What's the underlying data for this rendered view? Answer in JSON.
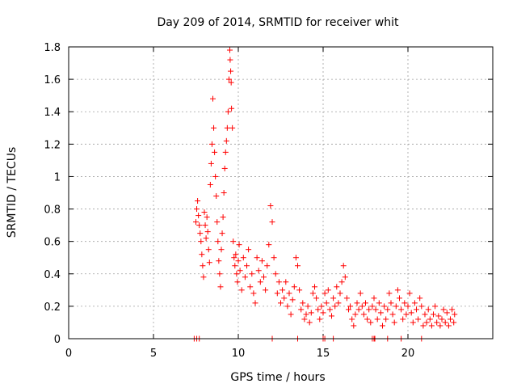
{
  "chart_data": {
    "type": "scatter",
    "title": "Day 209 of 2014, SRMTID for receiver whit",
    "xlabel": "GPS time / hours",
    "ylabel": "SRMTID / TECUs",
    "xlim": [
      0,
      25
    ],
    "ylim": [
      0,
      1.8
    ],
    "xticks": [
      0,
      5,
      10,
      15,
      20
    ],
    "xtick_labels": [
      "0",
      "5",
      "10",
      "15",
      "20"
    ],
    "yticks": [
      0,
      0.2,
      0.4,
      0.6,
      0.8,
      1,
      1.2,
      1.4,
      1.6,
      1.8
    ],
    "ytick_labels": [
      "0",
      "0.2",
      "0.4",
      "0.6",
      "0.8",
      "1",
      "1.2",
      "1.4",
      "1.6",
      "1.8"
    ],
    "grid": true,
    "marker": "+",
    "marker_color": "#ff0000",
    "series": [
      {
        "name": "SRMTID",
        "points": [
          [
            7.5,
            0.72
          ],
          [
            7.55,
            0.8
          ],
          [
            7.6,
            0.85
          ],
          [
            7.65,
            0.76
          ],
          [
            7.7,
            0.7
          ],
          [
            7.75,
            0.65
          ],
          [
            7.8,
            0.6
          ],
          [
            7.85,
            0.52
          ],
          [
            7.9,
            0.45
          ],
          [
            7.95,
            0.38
          ],
          [
            8.0,
            0.78
          ],
          [
            8.05,
            0.7
          ],
          [
            8.1,
            0.62
          ],
          [
            8.15,
            0.75
          ],
          [
            8.2,
            0.66
          ],
          [
            8.25,
            0.55
          ],
          [
            8.3,
            0.47
          ],
          [
            8.35,
            0.95
          ],
          [
            8.4,
            1.08
          ],
          [
            8.45,
            1.2
          ],
          [
            8.5,
            1.48
          ],
          [
            8.55,
            1.3
          ],
          [
            8.6,
            1.15
          ],
          [
            8.65,
            1.0
          ],
          [
            8.7,
            0.88
          ],
          [
            8.75,
            0.72
          ],
          [
            8.8,
            0.6
          ],
          [
            8.85,
            0.48
          ],
          [
            8.9,
            0.4
          ],
          [
            8.95,
            0.32
          ],
          [
            9.0,
            0.55
          ],
          [
            9.05,
            0.65
          ],
          [
            9.1,
            0.75
          ],
          [
            9.15,
            0.9
          ],
          [
            9.2,
            1.05
          ],
          [
            9.25,
            1.15
          ],
          [
            9.3,
            1.22
          ],
          [
            9.35,
            1.3
          ],
          [
            9.4,
            1.4
          ],
          [
            9.45,
            1.6
          ],
          [
            9.5,
            1.78
          ],
          [
            9.52,
            1.72
          ],
          [
            9.55,
            1.65
          ],
          [
            9.58,
            1.58
          ],
          [
            9.6,
            1.42
          ],
          [
            9.65,
            1.3
          ],
          [
            9.7,
            0.6
          ],
          [
            9.75,
            0.5
          ],
          [
            9.8,
            0.45
          ],
          [
            9.85,
            0.52
          ],
          [
            9.9,
            0.4
          ],
          [
            9.95,
            0.35
          ],
          [
            10.0,
            0.48
          ],
          [
            10.05,
            0.58
          ],
          [
            10.1,
            0.42
          ],
          [
            10.2,
            0.3
          ],
          [
            10.3,
            0.5
          ],
          [
            10.4,
            0.38
          ],
          [
            10.5,
            0.45
          ],
          [
            10.6,
            0.55
          ],
          [
            10.7,
            0.32
          ],
          [
            10.8,
            0.4
          ],
          [
            10.9,
            0.28
          ],
          [
            11.0,
            0.22
          ],
          [
            11.1,
            0.5
          ],
          [
            11.2,
            0.42
          ],
          [
            11.3,
            0.35
          ],
          [
            11.4,
            0.48
          ],
          [
            11.5,
            0.38
          ],
          [
            11.6,
            0.3
          ],
          [
            11.7,
            0.45
          ],
          [
            11.8,
            0.58
          ],
          [
            11.9,
            0.82
          ],
          [
            12.0,
            0.72
          ],
          [
            12.1,
            0.5
          ],
          [
            12.2,
            0.4
          ],
          [
            12.3,
            0.28
          ],
          [
            12.4,
            0.35
          ],
          [
            12.5,
            0.22
          ],
          [
            12.6,
            0.3
          ],
          [
            12.7,
            0.25
          ],
          [
            12.8,
            0.35
          ],
          [
            12.9,
            0.2
          ],
          [
            13.0,
            0.28
          ],
          [
            13.1,
            0.15
          ],
          [
            13.2,
            0.24
          ],
          [
            13.3,
            0.32
          ],
          [
            13.4,
            0.5
          ],
          [
            13.5,
            0.45
          ],
          [
            13.6,
            0.3
          ],
          [
            13.7,
            0.18
          ],
          [
            13.8,
            0.22
          ],
          [
            13.9,
            0.12
          ],
          [
            14.0,
            0.15
          ],
          [
            14.1,
            0.2
          ],
          [
            14.2,
            0.1
          ],
          [
            14.3,
            0.16
          ],
          [
            14.4,
            0.28
          ],
          [
            14.5,
            0.32
          ],
          [
            14.6,
            0.25
          ],
          [
            14.7,
            0.18
          ],
          [
            14.8,
            0.12
          ],
          [
            14.9,
            0.2
          ],
          [
            15.0,
            0.16
          ],
          [
            15.1,
            0.28
          ],
          [
            15.2,
            0.22
          ],
          [
            15.3,
            0.3
          ],
          [
            15.4,
            0.18
          ],
          [
            15.5,
            0.14
          ],
          [
            15.6,
            0.25
          ],
          [
            15.7,
            0.2
          ],
          [
            15.8,
            0.32
          ],
          [
            15.9,
            0.22
          ],
          [
            16.0,
            0.28
          ],
          [
            16.1,
            0.35
          ],
          [
            16.2,
            0.45
          ],
          [
            16.3,
            0.38
          ],
          [
            16.4,
            0.25
          ],
          [
            16.5,
            0.18
          ],
          [
            16.6,
            0.2
          ],
          [
            16.7,
            0.12
          ],
          [
            16.8,
            0.08
          ],
          [
            16.9,
            0.15
          ],
          [
            17.0,
            0.22
          ],
          [
            17.1,
            0.18
          ],
          [
            17.2,
            0.28
          ],
          [
            17.3,
            0.2
          ],
          [
            17.4,
            0.15
          ],
          [
            17.5,
            0.22
          ],
          [
            17.6,
            0.12
          ],
          [
            17.7,
            0.18
          ],
          [
            17.8,
            0.1
          ],
          [
            17.9,
            0.2
          ],
          [
            18.0,
            0.25
          ],
          [
            18.1,
            0.18
          ],
          [
            18.2,
            0.12
          ],
          [
            18.3,
            0.22
          ],
          [
            18.4,
            0.16
          ],
          [
            18.5,
            0.08
          ],
          [
            18.6,
            0.2
          ],
          [
            18.7,
            0.12
          ],
          [
            18.8,
            0.18
          ],
          [
            18.9,
            0.28
          ],
          [
            19.0,
            0.22
          ],
          [
            19.1,
            0.15
          ],
          [
            19.2,
            0.1
          ],
          [
            19.3,
            0.2
          ],
          [
            19.4,
            0.3
          ],
          [
            19.5,
            0.25
          ],
          [
            19.6,
            0.18
          ],
          [
            19.7,
            0.12
          ],
          [
            19.8,
            0.22
          ],
          [
            19.9,
            0.15
          ],
          [
            20.0,
            0.2
          ],
          [
            20.1,
            0.28
          ],
          [
            20.2,
            0.16
          ],
          [
            20.3,
            0.1
          ],
          [
            20.4,
            0.22
          ],
          [
            20.5,
            0.18
          ],
          [
            20.6,
            0.12
          ],
          [
            20.7,
            0.25
          ],
          [
            20.8,
            0.2
          ],
          [
            20.9,
            0.08
          ],
          [
            21.0,
            0.15
          ],
          [
            21.1,
            0.1
          ],
          [
            21.2,
            0.18
          ],
          [
            21.3,
            0.12
          ],
          [
            21.4,
            0.08
          ],
          [
            21.5,
            0.15
          ],
          [
            21.6,
            0.2
          ],
          [
            21.7,
            0.1
          ],
          [
            21.8,
            0.14
          ],
          [
            21.9,
            0.08
          ],
          [
            22.0,
            0.12
          ],
          [
            22.1,
            0.18
          ],
          [
            22.2,
            0.1
          ],
          [
            22.3,
            0.16
          ],
          [
            22.4,
            0.08
          ],
          [
            22.5,
            0.12
          ],
          [
            22.6,
            0.18
          ],
          [
            22.7,
            0.1
          ],
          [
            22.75,
            0.15
          ]
        ],
        "baseline_points_x": [
          7.4,
          7.55,
          7.7,
          12.0,
          13.5,
          15.0,
          15.1,
          15.6,
          17.9,
          18.0,
          18.05,
          18.8,
          19.6,
          20.8
        ]
      }
    ]
  }
}
